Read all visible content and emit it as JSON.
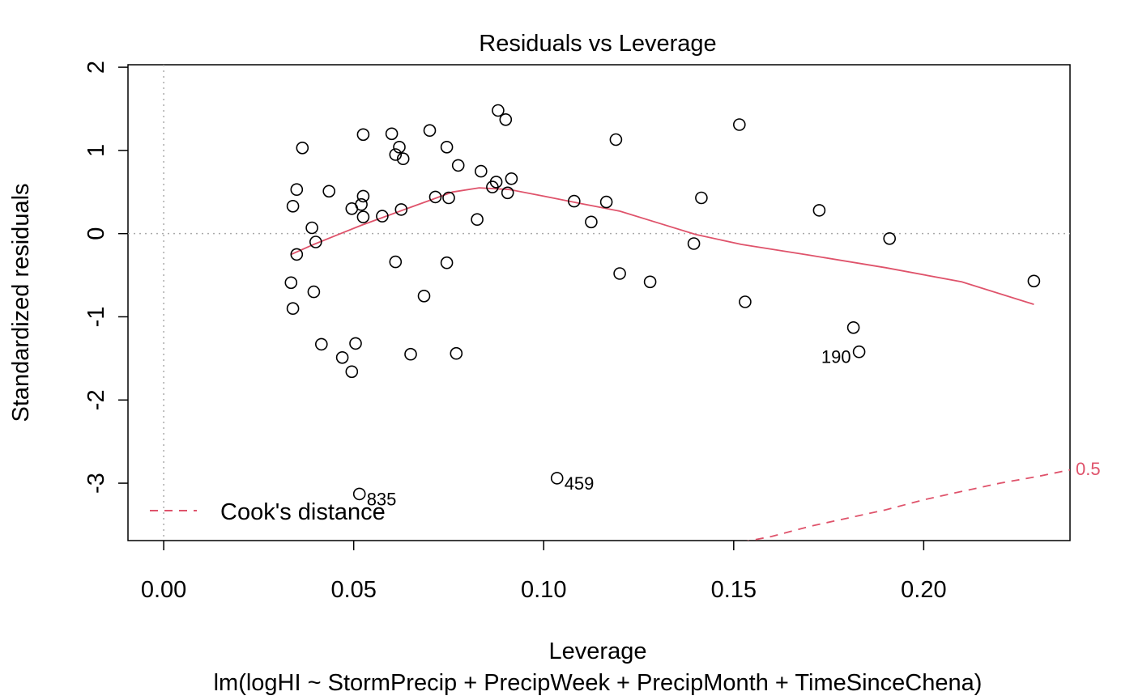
{
  "chart_data": {
    "type": "scatter",
    "title": "Residuals vs Leverage",
    "xlabel": "Leverage",
    "ylabel": "Standardized residuals",
    "subtitle": "lm(logHI ~ StormPrecip + PrecipWeek + PrecipMonth + TimeSinceChena)",
    "xlim": [
      -0.0094,
      0.2385
    ],
    "ylim": [
      -3.69,
      2.03
    ],
    "x_ticks": [
      0.0,
      0.05,
      0.1,
      0.15,
      0.2
    ],
    "x_tick_labels": [
      "0.00",
      "0.05",
      "0.10",
      "0.15",
      "0.20"
    ],
    "y_ticks": [
      -3,
      -2,
      -1,
      0,
      1,
      2
    ],
    "y_tick_labels": [
      "-3",
      "-2",
      "-1",
      "0",
      "1",
      "2"
    ],
    "points": [
      {
        "x": 0.088,
        "y": 1.48
      },
      {
        "x": 0.09,
        "y": 1.37
      },
      {
        "x": 0.1515,
        "y": 1.31
      },
      {
        "x": 0.07,
        "y": 1.24
      },
      {
        "x": 0.06,
        "y": 1.2
      },
      {
        "x": 0.0525,
        "y": 1.19
      },
      {
        "x": 0.119,
        "y": 1.13
      },
      {
        "x": 0.062,
        "y": 1.04
      },
      {
        "x": 0.0745,
        "y": 1.04
      },
      {
        "x": 0.0365,
        "y": 1.03
      },
      {
        "x": 0.061,
        "y": 0.95
      },
      {
        "x": 0.063,
        "y": 0.9
      },
      {
        "x": 0.0775,
        "y": 0.82
      },
      {
        "x": 0.0835,
        "y": 0.75
      },
      {
        "x": 0.0915,
        "y": 0.66
      },
      {
        "x": 0.0875,
        "y": 0.62
      },
      {
        "x": 0.0865,
        "y": 0.56
      },
      {
        "x": 0.035,
        "y": 0.53
      },
      {
        "x": 0.0435,
        "y": 0.51
      },
      {
        "x": 0.0905,
        "y": 0.49
      },
      {
        "x": 0.0525,
        "y": 0.45
      },
      {
        "x": 0.0715,
        "y": 0.44
      },
      {
        "x": 0.1415,
        "y": 0.43
      },
      {
        "x": 0.075,
        "y": 0.43
      },
      {
        "x": 0.108,
        "y": 0.39
      },
      {
        "x": 0.1165,
        "y": 0.38
      },
      {
        "x": 0.052,
        "y": 0.35
      },
      {
        "x": 0.034,
        "y": 0.33
      },
      {
        "x": 0.0495,
        "y": 0.3
      },
      {
        "x": 0.0625,
        "y": 0.29
      },
      {
        "x": 0.1725,
        "y": 0.28
      },
      {
        "x": 0.0575,
        "y": 0.21
      },
      {
        "x": 0.0525,
        "y": 0.2
      },
      {
        "x": 0.0825,
        "y": 0.17
      },
      {
        "x": 0.1125,
        "y": 0.14
      },
      {
        "x": 0.039,
        "y": 0.07
      },
      {
        "x": 0.191,
        "y": -0.06
      },
      {
        "x": 0.04,
        "y": -0.1
      },
      {
        "x": 0.1395,
        "y": -0.12
      },
      {
        "x": 0.035,
        "y": -0.25
      },
      {
        "x": 0.061,
        "y": -0.34
      },
      {
        "x": 0.0745,
        "y": -0.35
      },
      {
        "x": 0.12,
        "y": -0.48
      },
      {
        "x": 0.229,
        "y": -0.57
      },
      {
        "x": 0.128,
        "y": -0.58
      },
      {
        "x": 0.0335,
        "y": -0.59
      },
      {
        "x": 0.0395,
        "y": -0.7
      },
      {
        "x": 0.0685,
        "y": -0.75
      },
      {
        "x": 0.153,
        "y": -0.82
      },
      {
        "x": 0.034,
        "y": -0.9
      },
      {
        "x": 0.1815,
        "y": -1.13
      },
      {
        "x": 0.0415,
        "y": -1.33
      },
      {
        "x": 0.0505,
        "y": -1.32
      },
      {
        "x": 0.183,
        "y": -1.42
      },
      {
        "x": 0.065,
        "y": -1.45
      },
      {
        "x": 0.077,
        "y": -1.44
      },
      {
        "x": 0.047,
        "y": -1.49
      },
      {
        "x": 0.0495,
        "y": -1.66
      },
      {
        "x": 0.1035,
        "y": -2.94
      },
      {
        "x": 0.0515,
        "y": -3.13
      }
    ],
    "point_labels": [
      {
        "x": 0.183,
        "y": -1.42,
        "label": "190",
        "side": "left"
      },
      {
        "x": 0.1035,
        "y": -2.94,
        "label": "459",
        "side": "right"
      },
      {
        "x": 0.0515,
        "y": -3.13,
        "label": "835",
        "side": "right"
      }
    ],
    "smooth_line": {
      "x": [
        0.0335,
        0.0395,
        0.046,
        0.052,
        0.058,
        0.064,
        0.07,
        0.076,
        0.083,
        0.091,
        0.1,
        0.11,
        0.12,
        0.13,
        0.14,
        0.152,
        0.17,
        0.19,
        0.21,
        0.229
      ],
      "y": [
        -0.25,
        -0.13,
        -0.01,
        0.1,
        0.2,
        0.3,
        0.4,
        0.5,
        0.55,
        0.53,
        0.45,
        0.36,
        0.27,
        0.13,
        -0.01,
        -0.13,
        -0.26,
        -0.41,
        -0.58,
        -0.85
      ],
      "color": "#DF536B"
    },
    "cooks_distance": {
      "level_label": "0.5",
      "color": "#DF536B",
      "x": [
        0.152,
        0.16,
        0.17,
        0.18,
        0.19,
        0.2,
        0.21,
        0.22,
        0.23,
        0.2385
      ],
      "y": [
        -3.71,
        -3.64,
        -3.52,
        -3.42,
        -3.32,
        -3.2,
        -3.1,
        -3.0,
        -2.92,
        -2.84
      ]
    },
    "reference_lines": {
      "h": 0,
      "v": 0
    },
    "legend": {
      "entries": [
        "Cook's distance"
      ],
      "placement": "bottom-left"
    },
    "colors": {
      "points": "#000000",
      "smooth": "#DF536B",
      "cook": "#DF536B",
      "reference": "#AAAAAA"
    }
  }
}
